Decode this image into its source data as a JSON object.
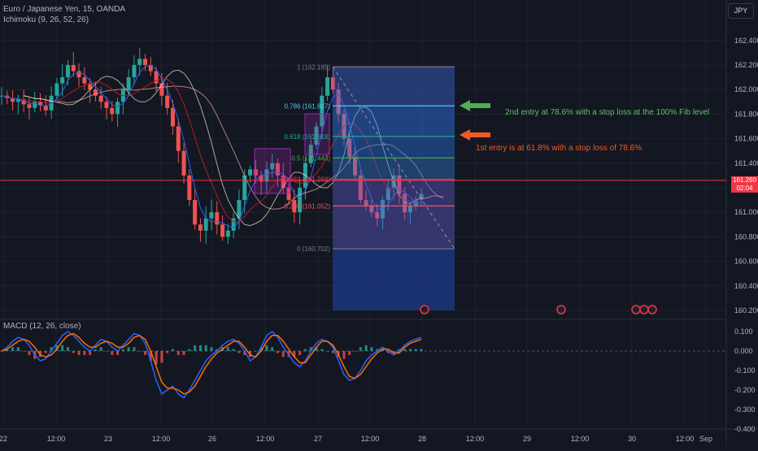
{
  "header": {
    "symbol_line": "Euro / Japanese Yen, 15, OANDA",
    "ichimoku_line": "Ichimoku (9, 26, 52, 26)",
    "macd_line": "MACD (12, 26, close)",
    "currency_button": "JPY"
  },
  "current_price": {
    "value": "161.260",
    "countdown": "02:04"
  },
  "annotations": {
    "green_note": "2nd entry at 78.6% with a stop loss at the 100% Fib level",
    "orange_note": "1st entry is at 61.8% with a stop loss of 78.6%"
  },
  "colors": {
    "background": "#131722",
    "grid": "#1e222d",
    "bull": "#26a69a",
    "bear": "#ef5350",
    "fib_box": "#2962ff",
    "green_arrow": "#4caf50",
    "orange_arrow": "#f05a28",
    "red_line": "#f23645"
  },
  "chart_data": [
    {
      "type": "candlestick",
      "price_axis": {
        "ticks": [
          "162.400",
          "162.200",
          "162.000",
          "161.800",
          "161.600",
          "161.400",
          "161.200",
          "161.000",
          "160.800",
          "160.600",
          "160.400",
          "160.200"
        ],
        "range": [
          160.2,
          162.5
        ]
      },
      "time_axis": {
        "ticks": [
          "22",
          "12:00",
          "23",
          "12:00",
          "26",
          "12:00",
          "27",
          "12:00",
          "28",
          "12:00",
          "29",
          "12:00",
          "30",
          "12:00",
          "Sep"
        ]
      },
      "close_series_approx": [
        161.95,
        161.93,
        161.9,
        161.92,
        161.88,
        161.85,
        161.9,
        161.87,
        161.83,
        161.95,
        162.05,
        162.1,
        162.2,
        162.15,
        162.1,
        162.05,
        162.0,
        161.95,
        161.9,
        161.85,
        161.8,
        161.9,
        162.0,
        162.1,
        162.2,
        162.25,
        162.2,
        162.15,
        162.05,
        161.95,
        161.85,
        161.7,
        161.5,
        161.3,
        161.1,
        160.9,
        160.85,
        160.95,
        161.0,
        160.9,
        160.8,
        160.85,
        160.95,
        161.1,
        161.3,
        161.35,
        161.3,
        161.25,
        161.35,
        161.4,
        161.3,
        161.2,
        161.1,
        161.0,
        161.2,
        161.4,
        161.55,
        161.7,
        161.95,
        162.1,
        162.0,
        161.8,
        161.6,
        161.45,
        161.3,
        161.1,
        161.05,
        161.0,
        160.95,
        161.1,
        161.2,
        161.3,
        161.15,
        161.0,
        161.05,
        161.1,
        161.15
      ],
      "fibonacci": [
        {
          "ratio": "1",
          "price": "162.185"
        },
        {
          "ratio": "0.786",
          "price": "161.867"
        },
        {
          "ratio": "0.618",
          "price": "161.618"
        },
        {
          "ratio": "0.5",
          "price": "161.443"
        },
        {
          "ratio": "0.382",
          "price": "161.268"
        },
        {
          "ratio": "0.236",
          "price": "161.052"
        },
        {
          "ratio": "0",
          "price": "160.702"
        }
      ]
    },
    {
      "type": "line",
      "name": "MACD",
      "y_axis": {
        "ticks": [
          "0.100",
          "0.000",
          "-0.100",
          "-0.200",
          "-0.300",
          "-0.400"
        ],
        "range": [
          -0.4,
          0.1
        ]
      },
      "macd_approx": [
        0.0,
        0.02,
        0.05,
        0.07,
        0.06,
        0.03,
        -0.02,
        -0.05,
        -0.04,
        0.0,
        0.04,
        0.08,
        0.1,
        0.08,
        0.05,
        0.02,
        0.0,
        0.03,
        0.06,
        0.05,
        0.02,
        0.0,
        0.03,
        0.06,
        0.09,
        0.08,
        0.04,
        -0.05,
        -0.15,
        -0.22,
        -0.2,
        -0.18,
        -0.22,
        -0.24,
        -0.2,
        -0.15,
        -0.1,
        -0.05,
        -0.02,
        0.0,
        0.03,
        0.05,
        0.06,
        0.04,
        0.0,
        -0.05,
        -0.03,
        0.02,
        0.08,
        0.1,
        0.07,
        0.02,
        -0.02,
        -0.06,
        -0.08,
        -0.05,
        0.0,
        0.04,
        0.06,
        0.05,
        0.02,
        -0.05,
        -0.12,
        -0.15,
        -0.14,
        -0.1,
        -0.05,
        -0.02,
        0.0,
        0.02,
        0.0,
        -0.02,
        0.0,
        0.03,
        0.05,
        0.06,
        0.07
      ],
      "signal_approx": [
        0.0,
        0.01,
        0.03,
        0.05,
        0.06,
        0.05,
        0.02,
        -0.02,
        -0.03,
        -0.02,
        0.01,
        0.05,
        0.08,
        0.09,
        0.07,
        0.04,
        0.02,
        0.02,
        0.04,
        0.05,
        0.04,
        0.02,
        0.02,
        0.04,
        0.07,
        0.08,
        0.06,
        0.0,
        -0.08,
        -0.16,
        -0.19,
        -0.19,
        -0.2,
        -0.22,
        -0.21,
        -0.18,
        -0.13,
        -0.08,
        -0.04,
        -0.01,
        0.01,
        0.03,
        0.05,
        0.05,
        0.02,
        -0.02,
        -0.03,
        0.0,
        0.05,
        0.08,
        0.08,
        0.05,
        0.01,
        -0.03,
        -0.06,
        -0.06,
        -0.02,
        0.02,
        0.05,
        0.05,
        0.03,
        -0.02,
        -0.08,
        -0.13,
        -0.14,
        -0.12,
        -0.08,
        -0.04,
        -0.01,
        0.01,
        0.01,
        -0.01,
        -0.01,
        0.02,
        0.04,
        0.05,
        0.06
      ]
    }
  ]
}
